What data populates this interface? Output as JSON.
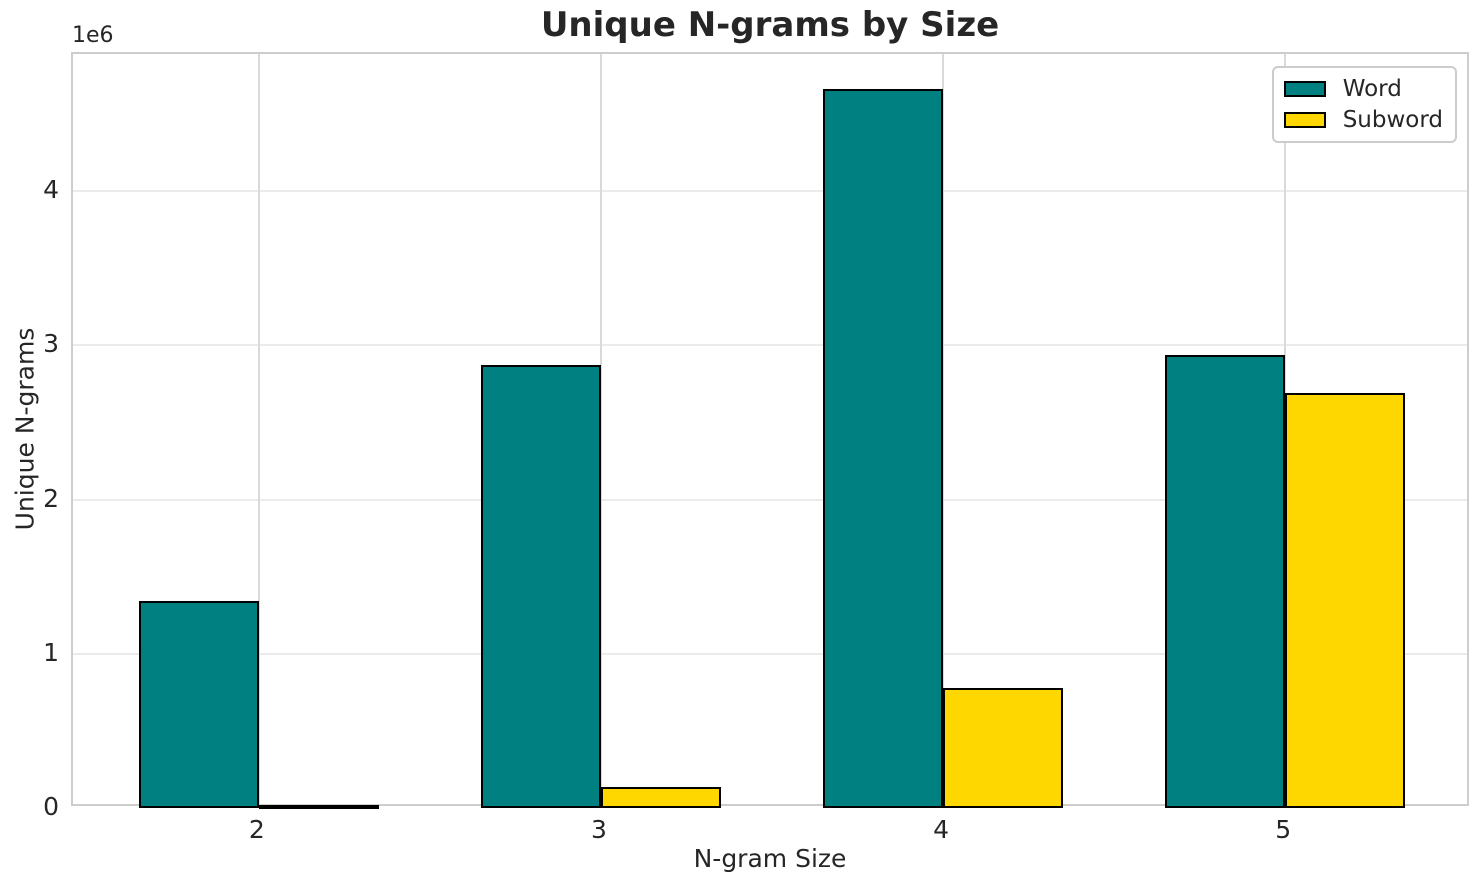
{
  "chart_data": {
    "type": "bar",
    "title": "Unique N-grams by Size",
    "xlabel": "N-gram Size",
    "ylabel": "Unique N-grams",
    "y_offset_text": "1e6",
    "categories": [
      "2",
      "3",
      "4",
      "5"
    ],
    "series": [
      {
        "name": "Word",
        "color": "#008080",
        "values": [
          1340000,
          2870000,
          4660000,
          2940000
        ]
      },
      {
        "name": "Subword",
        "color": "#FFD700",
        "values": [
          20000,
          135000,
          780000,
          2690000
        ]
      }
    ],
    "ylim": [
      0,
      4890000
    ],
    "yticks": [
      0,
      1000000,
      2000000,
      3000000,
      4000000
    ],
    "ytick_labels": [
      "0",
      "1",
      "2",
      "3",
      "4"
    ],
    "grid": true,
    "bar_width_fraction": 0.35,
    "bar_edge_color": "#000000",
    "legend_position": "upper right",
    "colors": {
      "grid_horizontal": "#ebebeb",
      "grid_vertical": "#d9d9d9",
      "spine": "#cdcdcd",
      "text": "#262626"
    }
  }
}
